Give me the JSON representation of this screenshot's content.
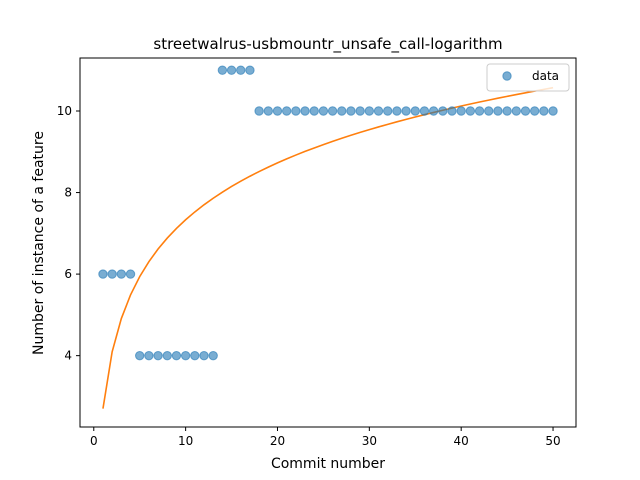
{
  "chart_data": {
    "type": "scatter",
    "title": "streetwalrus-usbmountr_unsafe_call-logarithm",
    "xlabel": "Commit number",
    "ylabel": "Number of instance of a feature",
    "xlim": [
      -1.5,
      52.5
    ],
    "ylim": [
      2.25,
      11.3
    ],
    "xticks": [
      0,
      10,
      20,
      30,
      40,
      50
    ],
    "yticks": [
      4,
      6,
      8,
      10
    ],
    "legend": {
      "placement": "top-right",
      "entries": [
        "data"
      ]
    },
    "grid": false,
    "colors": {
      "data": "#1f77b4",
      "fit": "#ff7f0e"
    },
    "series": [
      {
        "name": "data",
        "kind": "scatter",
        "x": [
          1,
          2,
          3,
          4,
          5,
          6,
          7,
          8,
          9,
          10,
          11,
          12,
          13,
          14,
          15,
          16,
          17,
          18,
          19,
          20,
          21,
          22,
          23,
          24,
          25,
          26,
          27,
          28,
          29,
          30,
          31,
          32,
          33,
          34,
          35,
          36,
          37,
          38,
          39,
          40,
          41,
          42,
          43,
          44,
          45,
          46,
          47,
          48,
          49,
          50
        ],
        "y": [
          6,
          6,
          6,
          6,
          4,
          4,
          4,
          4,
          4,
          4,
          4,
          4,
          4,
          11,
          11,
          11,
          11,
          10,
          10,
          10,
          10,
          10,
          10,
          10,
          10,
          10,
          10,
          10,
          10,
          10,
          10,
          10,
          10,
          10,
          10,
          10,
          10,
          10,
          10,
          10,
          10,
          10,
          10,
          10,
          10,
          10,
          10,
          10,
          10,
          10
        ]
      },
      {
        "kind": "line",
        "fit": {
          "model": "logarithm",
          "a": 2.7,
          "b": 2.012
        },
        "x_range": [
          1,
          50
        ]
      }
    ]
  }
}
